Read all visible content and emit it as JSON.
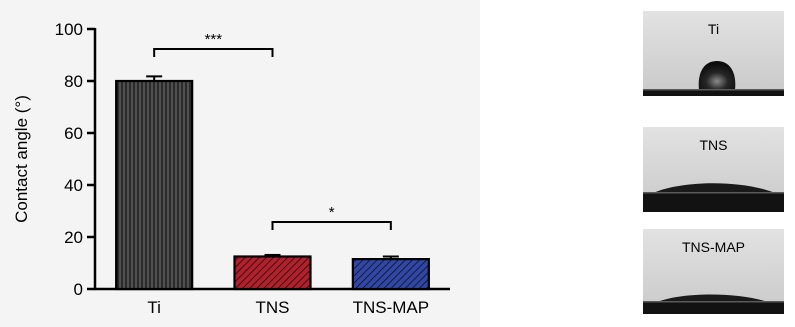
{
  "chart_data": {
    "type": "bar",
    "categories": [
      "Ti",
      "TNS",
      "TNS-MAP"
    ],
    "values": [
      80,
      12.5,
      11.5
    ],
    "errors": [
      1.8,
      0.6,
      1.0
    ],
    "ylabel": "Contact angle (°)",
    "xlabel": "",
    "ylim": [
      0,
      100
    ],
    "yticks": [
      0,
      20,
      40,
      60,
      80,
      100
    ],
    "bar_colors": [
      "#505050",
      "#b3202c",
      "#3047a8"
    ],
    "bar_patterns": [
      "vertical-lines",
      "diagonal-lines",
      "diagonal-lines"
    ],
    "significance": [
      {
        "from": 0,
        "to": 1,
        "label": "***"
      },
      {
        "from": 1,
        "to": 2,
        "label": "*"
      }
    ],
    "grid": false
  },
  "photos": [
    {
      "label": "Ti",
      "droplet": "high"
    },
    {
      "label": "TNS",
      "droplet": "flat"
    },
    {
      "label": "TNS-MAP",
      "droplet": "flatter"
    }
  ]
}
